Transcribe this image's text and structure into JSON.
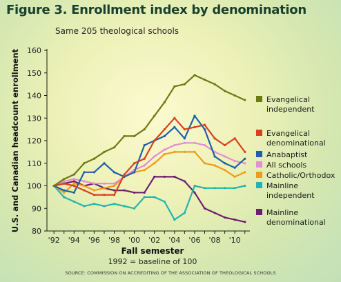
{
  "figure": {
    "title": "Figure 3. Enrollment index by denomination",
    "subtitle": "Same 205 theological schools",
    "source": "SOURCE: COMMISSION ON ACCREDITING OF THE ASSOCIATION OF THEOLOGICAL SCHOOLS"
  },
  "chart_data": {
    "type": "line",
    "title": "Figure 3. Enrollment index by denomination",
    "subtitle": "Same 205 theological schools",
    "xlabel": "Fall semester",
    "xlabel_note": "1992 = baseline of 100",
    "ylabel": "U.S. and Canadian headcount enrollment",
    "ylim": [
      80,
      160
    ],
    "yticks": [
      80,
      90,
      100,
      110,
      120,
      130,
      140,
      150,
      160
    ],
    "xlim": [
      1992,
      2011
    ],
    "xticks": [
      1992,
      1994,
      1996,
      1998,
      2000,
      2002,
      2004,
      2006,
      2008,
      2010
    ],
    "xtick_labels": [
      "'92",
      "'94",
      "'96",
      "'98",
      "'00",
      "'02",
      "'04",
      "'06",
      "'08",
      "'10"
    ],
    "grid": false,
    "legend_placement": "right",
    "x": [
      1992,
      1993,
      1994,
      1995,
      1996,
      1997,
      1998,
      1999,
      2000,
      2001,
      2002,
      2003,
      2004,
      2005,
      2006,
      2007,
      2008,
      2009,
      2010,
      2011
    ],
    "series": [
      {
        "name": "Evangelical independent",
        "color": "#6b7a12",
        "legend": [
          "Evangelical",
          "independent"
        ],
        "values": [
          100,
          103,
          105,
          110,
          112,
          115,
          117,
          122,
          122,
          125,
          131,
          137,
          144,
          145,
          149,
          147,
          145,
          142,
          140,
          138
        ]
      },
      {
        "name": "Evangelical denominational",
        "color": "#d7401f",
        "legend": [
          "Evangelical",
          "denominational"
        ],
        "values": [
          100,
          101,
          100,
          98,
          96,
          96,
          96,
          105,
          110,
          112,
          120,
          125,
          130,
          125,
          126,
          127,
          121,
          118,
          121,
          115
        ]
      },
      {
        "name": "Anabaptist",
        "color": "#1f5fa8",
        "legend": [
          "Anabaptist"
        ],
        "values": [
          100,
          98,
          97,
          106,
          106,
          110,
          106,
          104,
          106,
          118,
          120,
          122,
          126,
          121,
          131,
          125,
          113,
          110,
          108,
          112
        ]
      },
      {
        "name": "All schools",
        "color": "#e38ed2",
        "legend": [
          "All schools"
        ],
        "values": [
          100,
          102,
          103,
          102,
          101,
          101,
          101,
          104,
          107,
          109,
          113,
          116,
          118,
          119,
          119,
          118,
          115,
          113,
          111,
          110
        ]
      },
      {
        "name": "Catholic/Orthodox",
        "color": "#f29a1a",
        "legend": [
          "Catholic/Orthodox"
        ],
        "values": [
          100,
          97,
          101,
          100,
          98,
          99,
          100,
          104,
          106,
          107,
          110,
          114,
          115,
          115,
          115,
          110,
          109,
          107,
          104,
          106
        ]
      },
      {
        "name": "Mainline independent",
        "color": "#23b4ad",
        "legend": [
          "Mainline",
          "independent"
        ],
        "values": [
          100,
          95,
          93,
          91,
          92,
          91,
          92,
          91,
          90,
          95,
          95,
          93,
          85,
          88,
          100,
          99,
          99,
          99,
          99,
          100
        ]
      },
      {
        "name": "Mainline denominational",
        "color": "#6b1f6d",
        "legend": [
          "Mainline",
          "denominational"
        ],
        "values": [
          100,
          101,
          102,
          100,
          101,
          99,
          98,
          98,
          97,
          97,
          104,
          104,
          104,
          102,
          97,
          90,
          88,
          86,
          85,
          84
        ]
      }
    ]
  }
}
